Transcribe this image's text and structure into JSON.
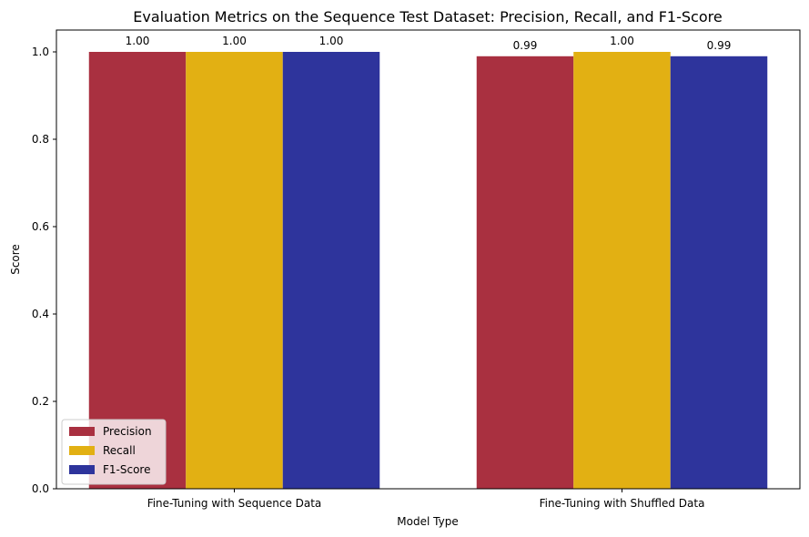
{
  "chart_data": {
    "type": "bar",
    "title": "Evaluation Metrics on the Sequence Test Dataset: Precision, Recall, and F1-Score",
    "xlabel": "Model Type",
    "ylabel": "Score",
    "ylim": [
      0,
      1.05
    ],
    "yticks": [
      "0.0",
      "0.2",
      "0.4",
      "0.6",
      "0.8",
      "1.0"
    ],
    "categories": [
      "Fine-Tuning with Sequence Data",
      "Fine-Tuning with Shuffled Data"
    ],
    "series": [
      {
        "name": "Precision",
        "color": "#a93040",
        "values": [
          1.0,
          0.99
        ],
        "labels": [
          "1.00",
          "0.99"
        ]
      },
      {
        "name": "Recall",
        "color": "#e2b013",
        "values": [
          1.0,
          1.0
        ],
        "labels": [
          "1.00",
          "1.00"
        ]
      },
      {
        "name": "F1-Score",
        "color": "#2e349c",
        "values": [
          1.0,
          0.99
        ],
        "labels": [
          "1.00",
          "0.99"
        ]
      }
    ],
    "grid": false,
    "legend_position": "lower-left"
  }
}
